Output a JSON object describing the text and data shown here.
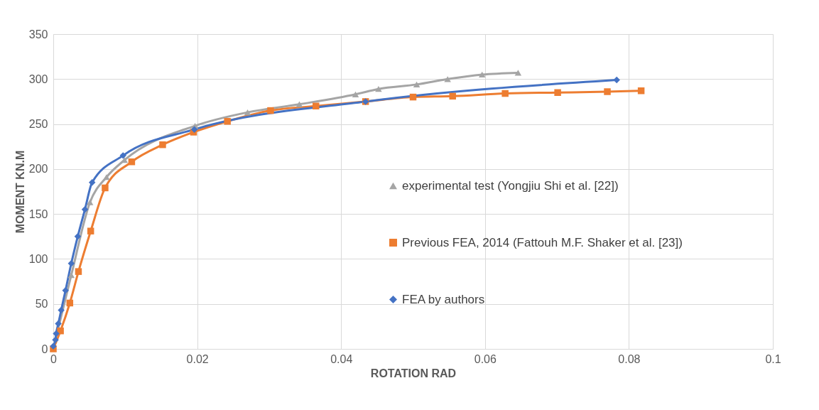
{
  "chart_data": {
    "type": "line",
    "xlabel": "ROTATION RAD",
    "ylabel": "MOMENT KN.M",
    "xlim": [
      0,
      0.1
    ],
    "xticks": [
      0,
      0.02,
      0.04,
      0.06,
      0.08,
      0.1
    ],
    "ylim": [
      0,
      350
    ],
    "yticks": [
      0,
      50,
      100,
      150,
      200,
      250,
      300,
      350
    ],
    "grid": true,
    "legend": "right",
    "line_style": "solid",
    "series": [
      {
        "name": "experimental test (Yongjiu Shi et al. [22])",
        "color": "#a5a5a5",
        "marker": "triangle",
        "x": [
          0,
          0.0025,
          0.0051,
          0.0074,
          0.0099,
          0.0197,
          0.027,
          0.0342,
          0.042,
          0.0452,
          0.0505,
          0.0548,
          0.0596,
          0.0646
        ],
        "values": [
          0,
          82,
          163,
          191,
          210,
          248,
          263,
          272,
          283,
          289,
          294,
          300,
          305,
          307
        ]
      },
      {
        "name": "Previous FEA, 2014 (Fattouh M.F. Shaker et al. [23])",
        "color": "#ed7d31",
        "marker": "square",
        "x": [
          0,
          0.001,
          0.0023,
          0.0035,
          0.0052,
          0.0072,
          0.0109,
          0.0152,
          0.0195,
          0.0242,
          0.0302,
          0.0365,
          0.0434,
          0.05,
          0.0555,
          0.0628,
          0.0701,
          0.077,
          0.0817
        ],
        "values": [
          0,
          20,
          51,
          86,
          131,
          179,
          208,
          227,
          241,
          253,
          265,
          270,
          275,
          280,
          281,
          284,
          285,
          286,
          287
        ]
      },
      {
        "name": "FEA by authors",
        "color": "#4472c4",
        "marker": "diamond",
        "x": [
          0,
          0.0003,
          0.0004,
          0.0007,
          0.0011,
          0.0017,
          0.0025,
          0.0034,
          0.0044,
          0.0054,
          0.0097,
          0.0196,
          0.0434,
          0.0783
        ],
        "values": [
          3,
          10,
          17,
          28,
          43,
          65,
          95,
          125,
          155,
          185,
          215,
          244,
          275,
          299
        ]
      }
    ]
  }
}
